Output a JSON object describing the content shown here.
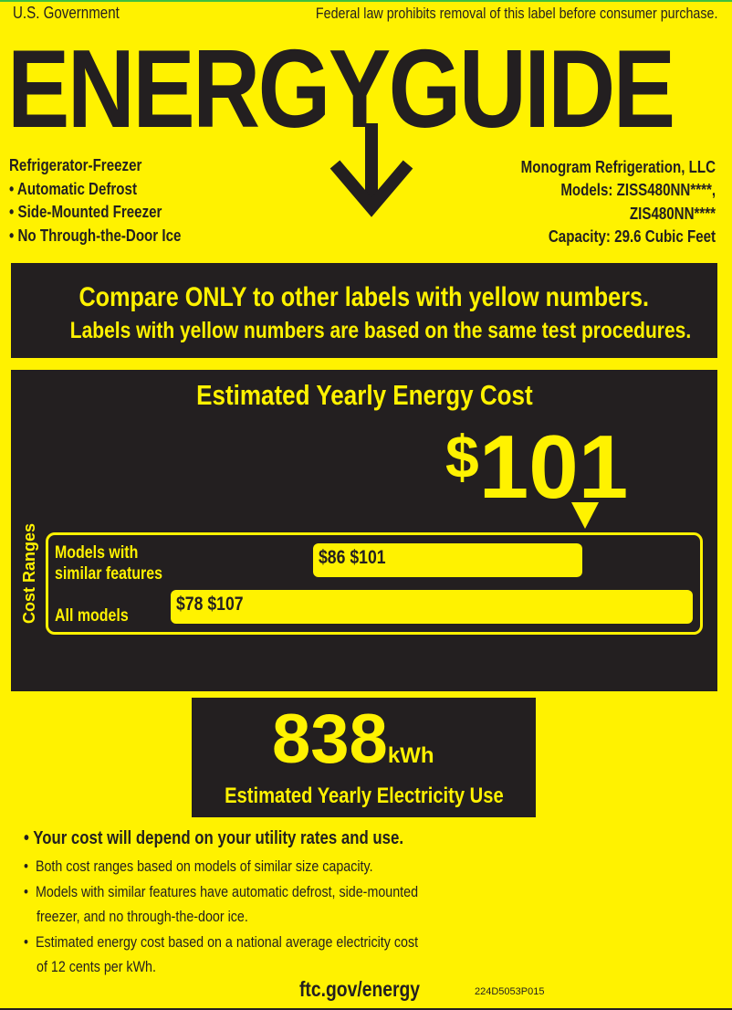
{
  "header": {
    "left": "U.S. Government",
    "right": "Federal law prohibits removal of this label before consumer purchase."
  },
  "logo": {
    "text": "ENERGYGUIDE"
  },
  "product": {
    "type": "Refrigerator-Freezer",
    "features": [
      "• Automatic Defrost",
      "• Side-Mounted Freezer",
      "• No Through-the-Door Ice"
    ]
  },
  "maker": {
    "name": "Monogram Refrigeration, LLC",
    "models_line1": "Models: ZISS480NN****,",
    "models_line2": "ZIS480NN****",
    "capacity": "Capacity: 29.6 Cubic Feet"
  },
  "compare": {
    "line1": "Compare ONLY to other labels with yellow numbers.",
    "line2": "Labels with yellow numbers are based on the same test procedures."
  },
  "cost": {
    "title": "Estimated Yearly Energy Cost",
    "currency": "$",
    "value": "101",
    "ranges_label": "Cost Ranges",
    "similar": {
      "label1": "Models with",
      "label2": "similar features",
      "range": "$86 $101",
      "min": 86,
      "max": 101
    },
    "all": {
      "label": "All models",
      "range": "$78 $107",
      "min": 78,
      "max": 107
    }
  },
  "electricity": {
    "value": "838",
    "unit": "kWh",
    "label": "Estimated Yearly Electricity Use"
  },
  "notes": {
    "main": "•  Your cost will depend on your utility rates and use.",
    "items": [
      [
        "Both cost ranges based on models of similar size capacity."
      ],
      [
        "Models with similar features have automatic defrost, side-mounted",
        "freezer, and no through-the-door ice."
      ],
      [
        "Estimated energy cost based on a national average electricity cost",
        "of 12 cents per kWh."
      ]
    ]
  },
  "footer": {
    "url": "ftc.gov/energy",
    "code": "224D5053P015"
  },
  "colors": {
    "yellow": "#FFF200",
    "dark": "#231F20"
  }
}
